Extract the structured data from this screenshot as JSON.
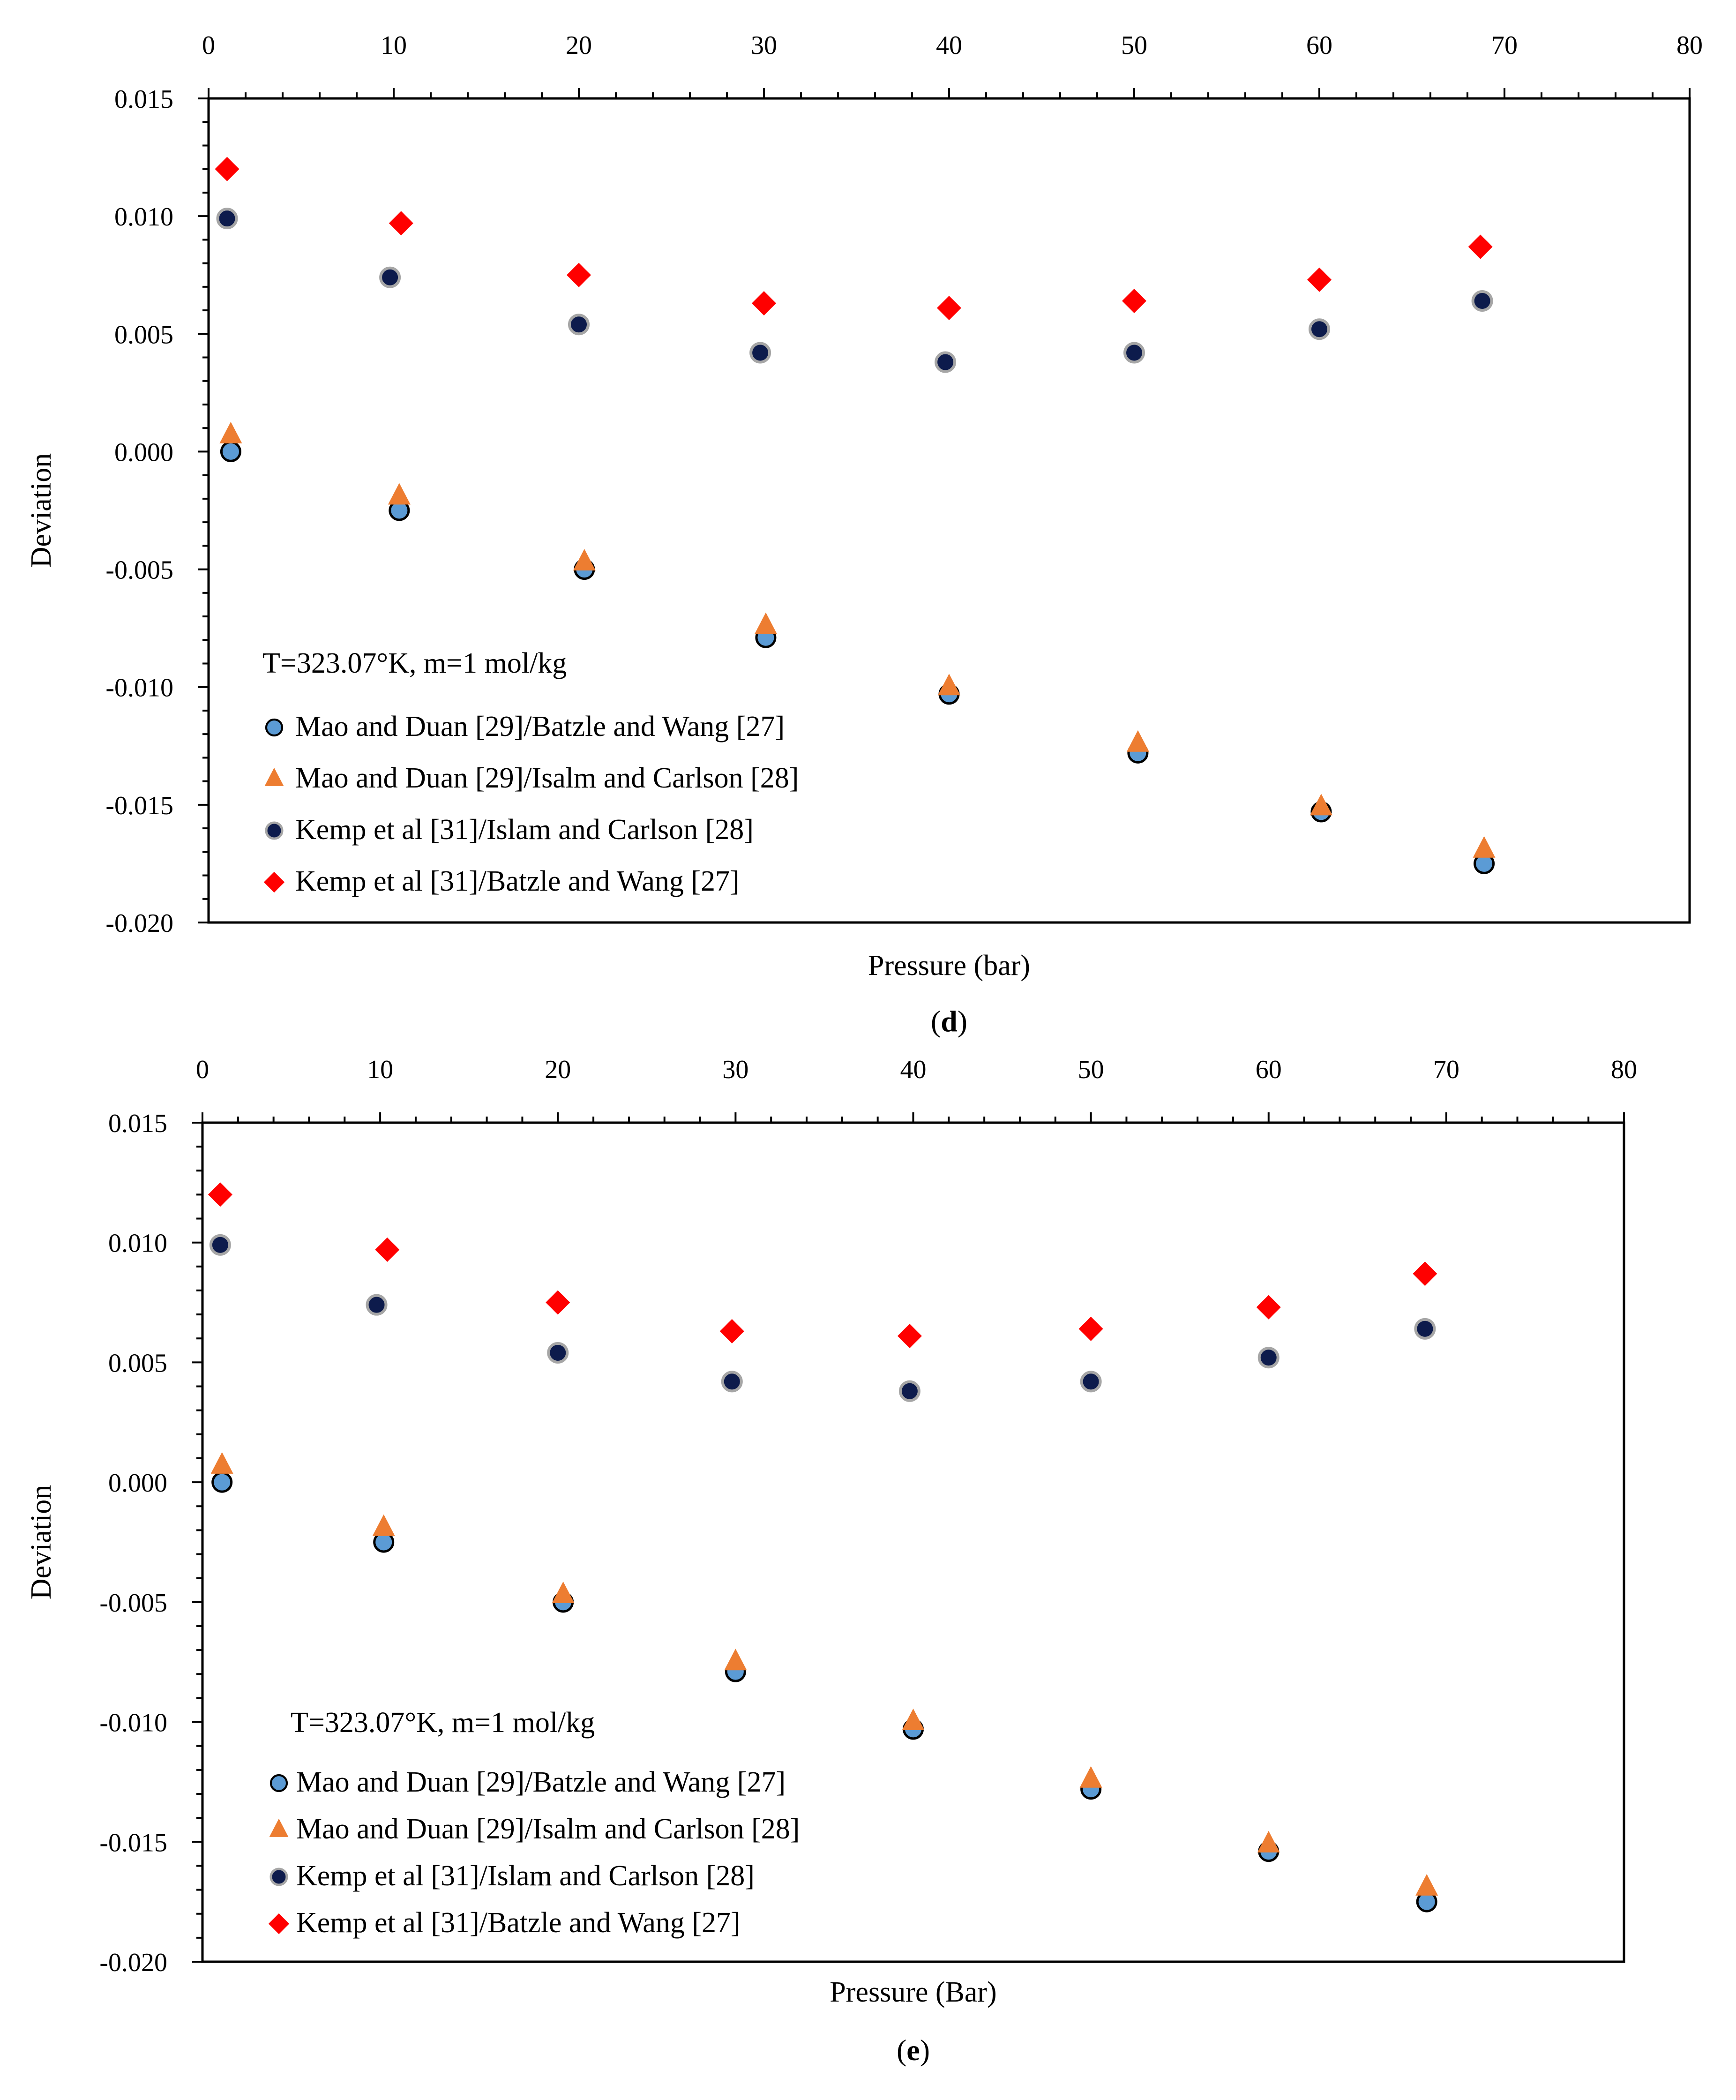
{
  "chart_data": [
    {
      "panel_label": "d",
      "type": "scatter",
      "annotation": "T=323.07°K, m=1 mol/kg",
      "xlabel": "Pressure (bar)",
      "ylabel": "Deviation",
      "xlim": [
        0,
        80
      ],
      "ylim": [
        -0.02,
        0.015
      ],
      "x_ticks": [
        0,
        10,
        20,
        30,
        40,
        50,
        60,
        70,
        80
      ],
      "x_tick_labels": [
        "0",
        "10",
        "20",
        "30",
        "40",
        "50",
        "60",
        "70",
        "80"
      ],
      "y_ticks": [
        0.015,
        0.01,
        0.005,
        0.0,
        -0.005,
        -0.01,
        -0.015,
        -0.02
      ],
      "y_tick_labels": [
        "0.015",
        "0.010",
        "0.005",
        "0.000",
        "-0.005",
        "-0.010",
        "-0.015",
        "-0.020"
      ],
      "legend_position": "bottom-left",
      "series": [
        {
          "name": "Mao and Duan [29]/Batzle and Wang [27]",
          "marker": "circle-blue",
          "x": [
            1.2,
            10.3,
            20.3,
            30.1,
            40.0,
            50.2,
            60.1,
            68.9
          ],
          "y": [
            0.0,
            -0.0025,
            -0.005,
            -0.0079,
            -0.0103,
            -0.0128,
            -0.0153,
            -0.0175
          ]
        },
        {
          "name": "Mao and Duan [29]/Isalm and Carlson [28]",
          "marker": "triangle-orange",
          "x": [
            1.2,
            10.3,
            20.3,
            30.1,
            40.0,
            50.2,
            60.1,
            68.9
          ],
          "y": [
            0.0007,
            -0.0019,
            -0.0047,
            -0.0074,
            -0.01,
            -0.0124,
            -0.0151,
            -0.0169
          ]
        },
        {
          "name": "Kemp et al [31]/Islam and Carlson [28]",
          "marker": "circle-navy",
          "x": [
            1.0,
            9.8,
            20.0,
            29.8,
            39.8,
            50.0,
            60.0,
            68.8
          ],
          "y": [
            0.0099,
            0.0074,
            0.0054,
            0.0042,
            0.0038,
            0.0042,
            0.0052,
            0.0064
          ]
        },
        {
          "name": "Kemp et al [31]/Batzle and Wang [27]",
          "marker": "diamond-red",
          "x": [
            1.0,
            10.4,
            20.0,
            30.0,
            40.0,
            50.0,
            60.0,
            68.7
          ],
          "y": [
            0.012,
            0.0097,
            0.0075,
            0.0063,
            0.0061,
            0.0064,
            0.0073,
            0.0087
          ]
        }
      ]
    },
    {
      "panel_label": "e",
      "type": "scatter",
      "annotation": "T=323.07°K, m=1 mol/kg",
      "xlabel": "Pressure (Bar)",
      "ylabel": "Deviation",
      "xlim": [
        0,
        80
      ],
      "ylim": [
        -0.02,
        0.015
      ],
      "x_ticks": [
        0,
        10,
        20,
        30,
        40,
        50,
        60,
        70,
        80
      ],
      "x_tick_labels": [
        "0",
        "10",
        "20",
        "30",
        "40",
        "50",
        "60",
        "70",
        "80"
      ],
      "y_ticks": [
        0.015,
        0.01,
        0.005,
        0.0,
        -0.005,
        -0.01,
        -0.015,
        -0.02
      ],
      "y_tick_labels": [
        "0.015",
        "0.010",
        "0.005",
        "0.000",
        "-0.005",
        "-0.010",
        "-0.015",
        "-0.020"
      ],
      "legend_position": "bottom-left",
      "series": [
        {
          "name": "Mao and Duan [29]/Batzle and Wang [27]",
          "marker": "circle-blue",
          "x": [
            1.1,
            10.2,
            20.3,
            30.0,
            40.0,
            50.0,
            60.0,
            68.9
          ],
          "y": [
            0.0,
            -0.0025,
            -0.005,
            -0.0079,
            -0.0103,
            -0.0128,
            -0.0154,
            -0.0175
          ]
        },
        {
          "name": "Mao and Duan [29]/Isalm and Carlson [28]",
          "marker": "triangle-orange",
          "x": [
            1.1,
            10.2,
            20.3,
            30.0,
            40.0,
            50.0,
            60.0,
            68.9
          ],
          "y": [
            0.0007,
            -0.0019,
            -0.0047,
            -0.0075,
            -0.01,
            -0.0124,
            -0.0151,
            -0.0169
          ]
        },
        {
          "name": "Kemp et al [31]/Islam and Carlson [28]",
          "marker": "circle-navy",
          "x": [
            1.0,
            9.8,
            20.0,
            29.8,
            39.8,
            50.0,
            60.0,
            68.8
          ],
          "y": [
            0.0099,
            0.0074,
            0.0054,
            0.0042,
            0.0038,
            0.0042,
            0.0052,
            0.0064
          ]
        },
        {
          "name": "Kemp et al [31]/Batzle and Wang [27]",
          "marker": "diamond-red",
          "x": [
            1.0,
            10.4,
            20.0,
            29.8,
            39.8,
            50.0,
            60.0,
            68.8
          ],
          "y": [
            0.012,
            0.0097,
            0.0075,
            0.0063,
            0.0061,
            0.0064,
            0.0073,
            0.0087
          ]
        }
      ]
    }
  ],
  "colors": {
    "circle_blue_fill": "#5b9bd5",
    "circle_navy_fill": "#0d1b4c",
    "circle_gray_stroke": "#a6a6a6",
    "triangle_orange": "#ed7d31",
    "diamond_red": "#ff0000",
    "axis": "#000000"
  }
}
